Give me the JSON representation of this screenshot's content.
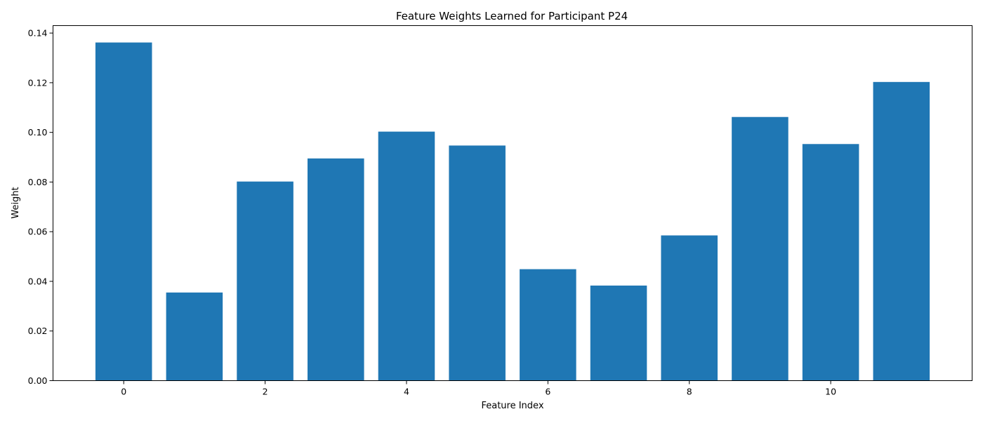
{
  "chart_data": {
    "type": "bar",
    "title": "Feature Weights Learned for Participant P24",
    "xlabel": "Feature Index",
    "ylabel": "Weight",
    "categories": [
      0,
      1,
      2,
      3,
      4,
      5,
      6,
      7,
      8,
      9,
      10,
      11
    ],
    "values": [
      0.1362,
      0.0355,
      0.0802,
      0.0895,
      0.1003,
      0.0947,
      0.0449,
      0.0383,
      0.0585,
      0.1062,
      0.0953,
      0.1203
    ],
    "bar_color": "#1f77b4",
    "xlim": [
      -1,
      12
    ],
    "ylim": [
      0,
      0.143
    ],
    "xticks": [
      0,
      2,
      4,
      6,
      8,
      10
    ],
    "xtick_labels": [
      "0",
      "2",
      "4",
      "6",
      "8",
      "10"
    ],
    "yticks": [
      0,
      0.02,
      0.04,
      0.06,
      0.08,
      0.1,
      0.12,
      0.14
    ],
    "ytick_labels": [
      "0.00",
      "0.02",
      "0.04",
      "0.06",
      "0.08",
      "0.10",
      "0.12",
      "0.14"
    ],
    "grid": false,
    "legend": false
  }
}
